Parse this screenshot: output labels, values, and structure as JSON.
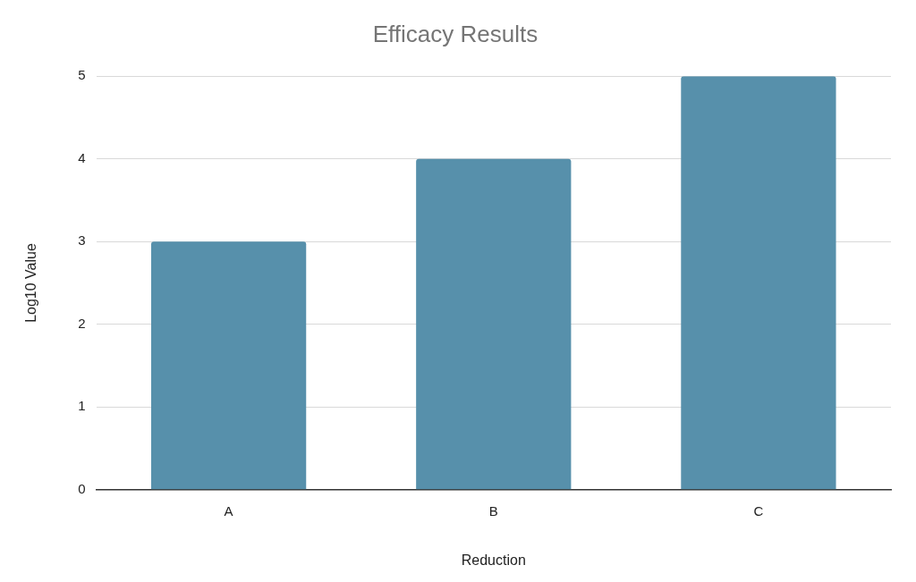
{
  "chart_data": {
    "type": "bar",
    "title": "Efficacy Results",
    "x_label": "Reduction",
    "y_label": "Log10 Value",
    "categories": [
      "A",
      "B",
      "C"
    ],
    "values": [
      3,
      4,
      5
    ],
    "color": "#5790ab",
    "ylim": [
      0,
      5
    ],
    "yticks": [
      0,
      1,
      2,
      3,
      4,
      5
    ],
    "grid": true
  }
}
